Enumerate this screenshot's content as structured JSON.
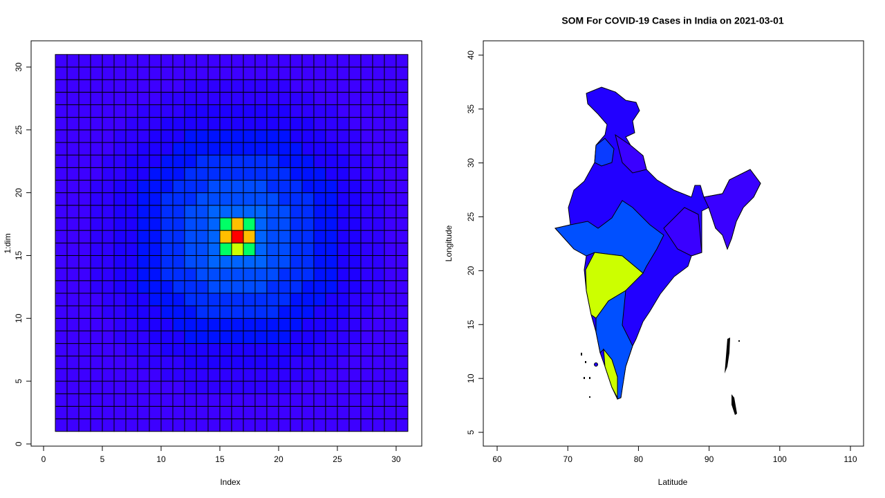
{
  "chart_data": [
    {
      "type": "heatmap",
      "xlabel": "Index",
      "ylabel": "1:dim",
      "x": [
        1.5,
        2.5,
        3.5,
        4.5,
        5.5,
        6.5,
        7.5,
        8.5,
        9.5,
        10.5,
        11.5,
        12.5,
        13.5,
        14.5,
        15.5,
        16.5,
        17.5,
        18.5,
        19.5,
        20.5,
        21.5,
        22.5,
        23.5,
        24.5,
        25.5,
        26.5,
        27.5,
        28.5,
        29.5,
        30.5
      ],
      "y": [
        1.5,
        2.5,
        3.5,
        4.5,
        5.5,
        6.5,
        7.5,
        8.5,
        9.5,
        10.5,
        11.5,
        12.5,
        13.5,
        14.5,
        15.5,
        16.5,
        17.5,
        18.5,
        19.5,
        20.5,
        21.5,
        22.5,
        23.5,
        24.5,
        25.5,
        26.5,
        27.5,
        28.5,
        29.5,
        30.5
      ],
      "colors": [
        "#3d00ff",
        "#2e00ff",
        "#1e00ff",
        "#0012ff",
        "#002eff",
        "#004cff",
        "#0064ff",
        "#00ff66",
        "#ccff00",
        "#ffbf00",
        "#ff0000"
      ],
      "z": [
        [
          0,
          0,
          0,
          0,
          0,
          0,
          0,
          0,
          0,
          0,
          0,
          0,
          0,
          0,
          0,
          0,
          0,
          0,
          0,
          0,
          0,
          0,
          0,
          0,
          0,
          0,
          0,
          0,
          0,
          0
        ],
        [
          0,
          0,
          0,
          0,
          0,
          0,
          0,
          0,
          0,
          0,
          0,
          0,
          0,
          0,
          0,
          0,
          0,
          0,
          0,
          0,
          0,
          0,
          0,
          0,
          0,
          0,
          0,
          0,
          0,
          0
        ],
        [
          0,
          0,
          0,
          0,
          0,
          0,
          0,
          0,
          0,
          0,
          0,
          0,
          0,
          0,
          0,
          0,
          0,
          0,
          0,
          0,
          0,
          0,
          0,
          0,
          0,
          0,
          0,
          0,
          0,
          0
        ],
        [
          0,
          0,
          0,
          0,
          0,
          0,
          0,
          0,
          0,
          0,
          0,
          1,
          1,
          1,
          1,
          1,
          1,
          1,
          1,
          1,
          0,
          0,
          0,
          0,
          0,
          0,
          0,
          0,
          0,
          0
        ],
        [
          0,
          0,
          0,
          0,
          0,
          0,
          0,
          0,
          0,
          1,
          1,
          1,
          1,
          1,
          1,
          1,
          1,
          1,
          1,
          1,
          1,
          1,
          0,
          0,
          0,
          0,
          0,
          0,
          0,
          0
        ],
        [
          0,
          0,
          0,
          0,
          0,
          0,
          0,
          1,
          1,
          1,
          1,
          2,
          2,
          2,
          2,
          2,
          2,
          2,
          2,
          2,
          1,
          1,
          1,
          1,
          0,
          0,
          0,
          0,
          0,
          0
        ],
        [
          0,
          0,
          0,
          0,
          0,
          0,
          1,
          1,
          1,
          2,
          2,
          2,
          2,
          2,
          2,
          2,
          2,
          2,
          2,
          2,
          2,
          2,
          1,
          1,
          1,
          0,
          0,
          0,
          0,
          0
        ],
        [
          0,
          0,
          0,
          0,
          0,
          1,
          1,
          1,
          2,
          2,
          2,
          3,
          3,
          3,
          3,
          3,
          3,
          3,
          3,
          3,
          2,
          2,
          2,
          1,
          1,
          1,
          0,
          0,
          0,
          0
        ],
        [
          0,
          0,
          0,
          0,
          0,
          1,
          1,
          2,
          2,
          2,
          3,
          3,
          3,
          3,
          3,
          3,
          3,
          3,
          3,
          3,
          3,
          2,
          2,
          2,
          1,
          1,
          0,
          0,
          0,
          0
        ],
        [
          0,
          0,
          0,
          0,
          1,
          1,
          2,
          2,
          2,
          3,
          3,
          3,
          4,
          4,
          4,
          4,
          4,
          4,
          4,
          3,
          3,
          3,
          2,
          2,
          2,
          1,
          1,
          0,
          0,
          0
        ],
        [
          0,
          0,
          0,
          0,
          1,
          1,
          2,
          2,
          3,
          3,
          3,
          4,
          4,
          4,
          4,
          4,
          4,
          4,
          4,
          4,
          3,
          3,
          3,
          2,
          2,
          1,
          1,
          0,
          0,
          0
        ],
        [
          0,
          0,
          0,
          1,
          1,
          2,
          2,
          3,
          3,
          3,
          4,
          4,
          4,
          5,
          5,
          5,
          5,
          5,
          4,
          4,
          4,
          3,
          3,
          3,
          2,
          2,
          1,
          1,
          0,
          0
        ],
        [
          0,
          0,
          0,
          1,
          1,
          2,
          2,
          3,
          3,
          4,
          4,
          4,
          5,
          5,
          5,
          5,
          5,
          5,
          5,
          4,
          4,
          4,
          3,
          3,
          2,
          2,
          1,
          1,
          0,
          0
        ],
        [
          0,
          0,
          0,
          1,
          1,
          2,
          2,
          3,
          3,
          4,
          4,
          5,
          5,
          6,
          6,
          6,
          6,
          6,
          5,
          5,
          4,
          4,
          3,
          3,
          2,
          2,
          1,
          1,
          0,
          0
        ],
        [
          0,
          0,
          0,
          1,
          1,
          2,
          2,
          3,
          3,
          4,
          4,
          5,
          5,
          6,
          7,
          8,
          7,
          6,
          5,
          5,
          4,
          4,
          3,
          3,
          2,
          2,
          1,
          1,
          0,
          0
        ],
        [
          0,
          0,
          0,
          1,
          1,
          2,
          2,
          3,
          3,
          4,
          4,
          5,
          5,
          6,
          9,
          10,
          9,
          6,
          5,
          5,
          4,
          4,
          3,
          3,
          2,
          2,
          1,
          1,
          0,
          0
        ],
        [
          0,
          0,
          0,
          1,
          1,
          2,
          2,
          3,
          3,
          4,
          4,
          5,
          5,
          6,
          7,
          9,
          7,
          6,
          5,
          5,
          4,
          4,
          3,
          3,
          2,
          2,
          1,
          1,
          0,
          0
        ],
        [
          0,
          0,
          0,
          1,
          1,
          2,
          2,
          3,
          3,
          4,
          4,
          5,
          5,
          6,
          6,
          6,
          6,
          6,
          5,
          5,
          4,
          4,
          3,
          3,
          2,
          2,
          1,
          1,
          0,
          0
        ],
        [
          0,
          0,
          0,
          1,
          1,
          2,
          2,
          3,
          3,
          4,
          4,
          4,
          5,
          5,
          5,
          5,
          5,
          5,
          5,
          4,
          4,
          4,
          3,
          3,
          2,
          2,
          1,
          1,
          0,
          0
        ],
        [
          0,
          0,
          0,
          1,
          1,
          2,
          2,
          3,
          3,
          3,
          4,
          4,
          4,
          5,
          5,
          5,
          5,
          5,
          4,
          4,
          4,
          3,
          3,
          3,
          2,
          2,
          1,
          1,
          0,
          0
        ],
        [
          0,
          0,
          0,
          0,
          1,
          1,
          2,
          2,
          3,
          3,
          3,
          4,
          4,
          4,
          4,
          4,
          4,
          4,
          4,
          4,
          3,
          3,
          3,
          2,
          2,
          1,
          1,
          0,
          0,
          0
        ],
        [
          0,
          0,
          0,
          0,
          1,
          1,
          2,
          2,
          2,
          3,
          3,
          3,
          4,
          4,
          4,
          4,
          4,
          4,
          4,
          3,
          3,
          3,
          2,
          2,
          2,
          1,
          1,
          0,
          0,
          0
        ],
        [
          0,
          0,
          0,
          0,
          0,
          1,
          1,
          2,
          2,
          2,
          3,
          3,
          3,
          3,
          3,
          3,
          3,
          3,
          3,
          3,
          3,
          2,
          2,
          2,
          1,
          1,
          0,
          0,
          0,
          0
        ],
        [
          0,
          0,
          0,
          0,
          0,
          1,
          1,
          1,
          2,
          2,
          2,
          3,
          3,
          3,
          3,
          3,
          3,
          3,
          3,
          3,
          2,
          2,
          2,
          1,
          1,
          1,
          0,
          0,
          0,
          0
        ],
        [
          0,
          0,
          0,
          0,
          0,
          0,
          1,
          1,
          1,
          2,
          2,
          2,
          2,
          2,
          2,
          2,
          2,
          2,
          2,
          2,
          2,
          2,
          1,
          1,
          1,
          0,
          0,
          0,
          0,
          0
        ],
        [
          0,
          0,
          0,
          0,
          0,
          0,
          0,
          1,
          1,
          1,
          1,
          2,
          2,
          2,
          2,
          2,
          2,
          2,
          2,
          2,
          1,
          1,
          1,
          1,
          0,
          0,
          0,
          0,
          0,
          0
        ],
        [
          0,
          0,
          0,
          0,
          0,
          0,
          0,
          0,
          0,
          1,
          1,
          1,
          1,
          1,
          1,
          1,
          1,
          1,
          1,
          1,
          1,
          1,
          0,
          0,
          0,
          0,
          0,
          0,
          0,
          0
        ],
        [
          0,
          0,
          0,
          0,
          0,
          0,
          0,
          0,
          0,
          0,
          0,
          1,
          1,
          1,
          1,
          1,
          1,
          1,
          1,
          1,
          0,
          0,
          0,
          0,
          0,
          0,
          0,
          0,
          0,
          0
        ],
        [
          0,
          0,
          0,
          0,
          0,
          0,
          0,
          0,
          0,
          0,
          0,
          0,
          0,
          0,
          0,
          0,
          0,
          0,
          0,
          0,
          0,
          0,
          0,
          0,
          0,
          0,
          0,
          0,
          0,
          0
        ],
        [
          0,
          0,
          0,
          0,
          0,
          0,
          0,
          0,
          0,
          0,
          0,
          0,
          0,
          0,
          0,
          0,
          0,
          0,
          0,
          0,
          0,
          0,
          0,
          0,
          0,
          0,
          0,
          0,
          0,
          0
        ]
      ],
      "xlim": [
        -1.06,
        32.18
      ],
      "ylim": [
        -0.17,
        32.09
      ],
      "xticks": [
        0,
        5,
        10,
        15,
        20,
        25,
        30
      ],
      "yticks": [
        0,
        5,
        10,
        15,
        20,
        25,
        30
      ]
    },
    {
      "type": "map",
      "title": "SOM For COVID-19 Cases in India on 2021-03-01",
      "xlabel": "Latitude",
      "ylabel": "Longitude",
      "xlim": [
        58.04,
        111.86
      ],
      "ylim": [
        3.72,
        41.33
      ],
      "xticks": [
        60,
        70,
        80,
        90,
        100,
        110
      ],
      "yticks": [
        5,
        10,
        15,
        20,
        25,
        30,
        35,
        40
      ]
    }
  ]
}
